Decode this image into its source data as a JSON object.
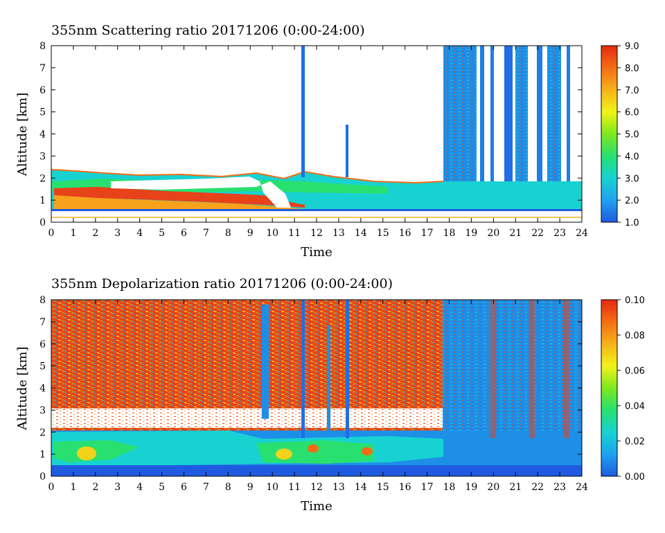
{
  "chart_data": [
    {
      "type": "heatmap",
      "title": "355nm Scattering ratio  20171206 (0:00-24:00)",
      "xlabel": "Time",
      "ylabel": "Altitude [km]",
      "xlim": [
        0,
        24
      ],
      "ylim": [
        0,
        8
      ],
      "x_ticks": [
        "0",
        "1",
        "2",
        "3",
        "4",
        "5",
        "6",
        "7",
        "8",
        "9",
        "10",
        "11",
        "12",
        "13",
        "14",
        "15",
        "16",
        "17",
        "18",
        "19",
        "20",
        "21",
        "22",
        "23",
        "24"
      ],
      "y_ticks": [
        "0",
        "1",
        "2",
        "3",
        "4",
        "5",
        "6",
        "7",
        "8"
      ],
      "colorbar": {
        "range": [
          1.0,
          9.0
        ],
        "labels": [
          "1.0",
          "2.0",
          "3.0",
          "4.0",
          "5.0",
          "6.0",
          "7.0",
          "8.0",
          "9.0"
        ],
        "colors": [
          "#1f5be0",
          "#1fa2f0",
          "#18d2d2",
          "#28e070",
          "#7ee81e",
          "#f2f21a",
          "#f7b21c",
          "#f46d14",
          "#e62a12"
        ]
      },
      "features": {
        "aerosol_layer_top_km": 1.8,
        "aerosol_layer_bottom_km": 0.55,
        "clouds_after_hour": 17.7,
        "thin_cloud_columns_hours": [
          11.4,
          13.4
        ]
      }
    },
    {
      "type": "heatmap",
      "title": "355nm Depolarization ratio  20171206 (0:00-24:00)",
      "xlabel": "Time",
      "ylabel": "Altitude [km]",
      "xlim": [
        0,
        24
      ],
      "ylim": [
        0,
        8
      ],
      "x_ticks": [
        "0",
        "1",
        "2",
        "3",
        "4",
        "5",
        "6",
        "7",
        "8",
        "9",
        "10",
        "11",
        "12",
        "13",
        "14",
        "15",
        "16",
        "17",
        "18",
        "19",
        "20",
        "21",
        "22",
        "23",
        "24"
      ],
      "y_ticks": [
        "0",
        "1",
        "2",
        "3",
        "4",
        "5",
        "6",
        "7",
        "8"
      ],
      "colorbar": {
        "range": [
          0.0,
          0.1
        ],
        "labels": [
          "0.00",
          "0.02",
          "0.04",
          "0.06",
          "0.08",
          "0.10"
        ],
        "colors": [
          "#1f5be0",
          "#1fa2f0",
          "#18d2d2",
          "#28e070",
          "#7ee81e",
          "#f2f21a",
          "#f7b21c",
          "#f46d14",
          "#e62a12"
        ]
      },
      "features": {
        "noisy_high_depol_until_hour": 17.6,
        "cloud_columns_hours": [
          9.6,
          11.4,
          12.6,
          13.4
        ]
      }
    }
  ]
}
